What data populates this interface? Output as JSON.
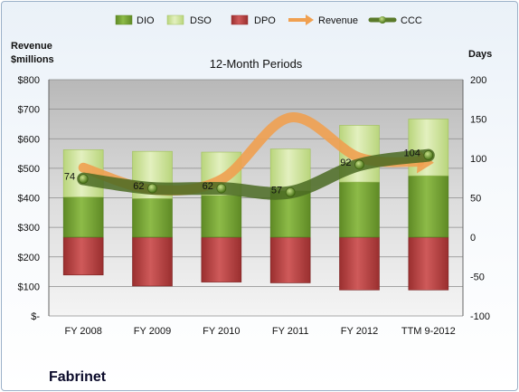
{
  "chart_data": {
    "type": "bar",
    "title": "12-Month Periods",
    "company": "Fabrinet",
    "left_axis_title": [
      "Revenue",
      "$millions"
    ],
    "right_axis_title": "Days",
    "categories": [
      "FY 2008",
      "FY 2009",
      "FY 2010",
      "FY 2011",
      "FY 2012",
      "TTM 9-2012"
    ],
    "left_axis": {
      "min": 0,
      "max": 800,
      "step": 100,
      "tick_labels": [
        "$-",
        "$100",
        "$200",
        "$300",
        "$400",
        "$500",
        "$600",
        "$700",
        "$800"
      ]
    },
    "right_axis": {
      "min": -100,
      "max": 200,
      "step": 50,
      "tick_labels": [
        "-100",
        "-50",
        "0",
        "50",
        "100",
        "150",
        "200"
      ]
    },
    "grid": true,
    "legend_position": "top",
    "series": [
      {
        "name": "DIO",
        "axis": "right",
        "kind": "stacked-bar",
        "color": "#7aa33a",
        "values": [
          51,
          49,
          53,
          59,
          70,
          78
        ]
      },
      {
        "name": "DSO",
        "axis": "right",
        "kind": "stacked-bar",
        "color": "#d4e6a0",
        "values": [
          60,
          60,
          55,
          53,
          72,
          72
        ]
      },
      {
        "name": "DPO",
        "axis": "right",
        "kind": "negative-bar",
        "color": "#b94545",
        "values": [
          -48,
          -62,
          -57,
          -58,
          -67,
          -67
        ]
      },
      {
        "name": "Revenue",
        "axis": "left",
        "kind": "line",
        "color": "#f0a050",
        "values": [
          502,
          428,
          462,
          672,
          536,
          520
        ]
      },
      {
        "name": "CCC",
        "axis": "right",
        "kind": "line",
        "color": "#5a7a2a",
        "values": [
          74,
          62,
          62,
          57,
          92,
          104
        ],
        "labels": [
          "74",
          "62",
          "62",
          "57",
          "92",
          "104"
        ]
      }
    ]
  }
}
